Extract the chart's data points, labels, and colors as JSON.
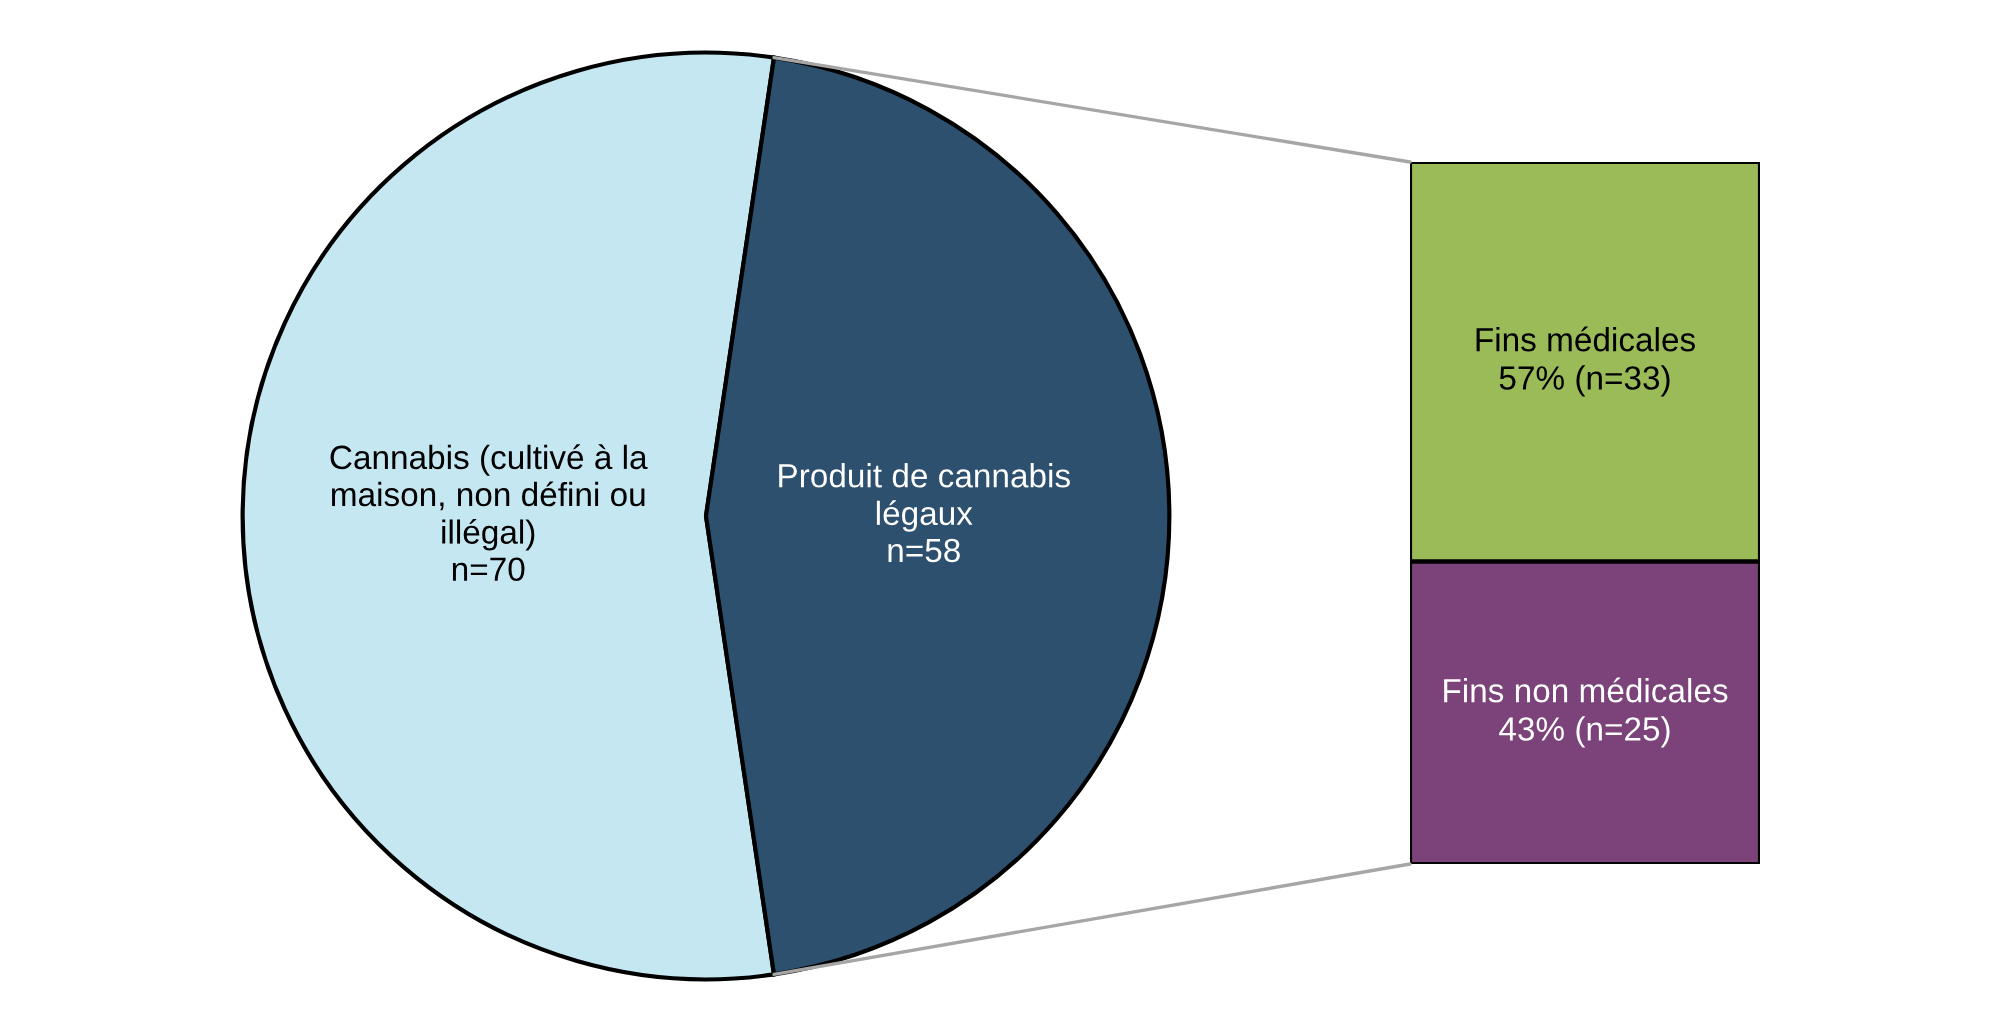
{
  "chart_data": [
    {
      "type": "pie",
      "categories": [
        "Cannabis (cultivé à la\nmaison, non défini ou\nillégal)",
        "Produit de cannabis\nlégaux"
      ],
      "values": [
        70,
        58
      ],
      "colors": [
        "#c5e7f2",
        "#2e506f"
      ],
      "value_labels": [
        "n=70",
        "n=58"
      ],
      "legend": false
    },
    {
      "type": "bar",
      "stacked": true,
      "categories": [
        null
      ],
      "legend": false,
      "series": [
        {
          "name": "Fins non médicales",
          "color": "#7b4379",
          "values": [
            25
          ],
          "value_labels": [
            "43% (n=25)"
          ]
        },
        {
          "name": "Fins médicales",
          "color": "#9bbb59",
          "values": [
            33
          ],
          "value_labels": [
            "57% (n=33)"
          ]
        }
      ]
    }
  ]
}
